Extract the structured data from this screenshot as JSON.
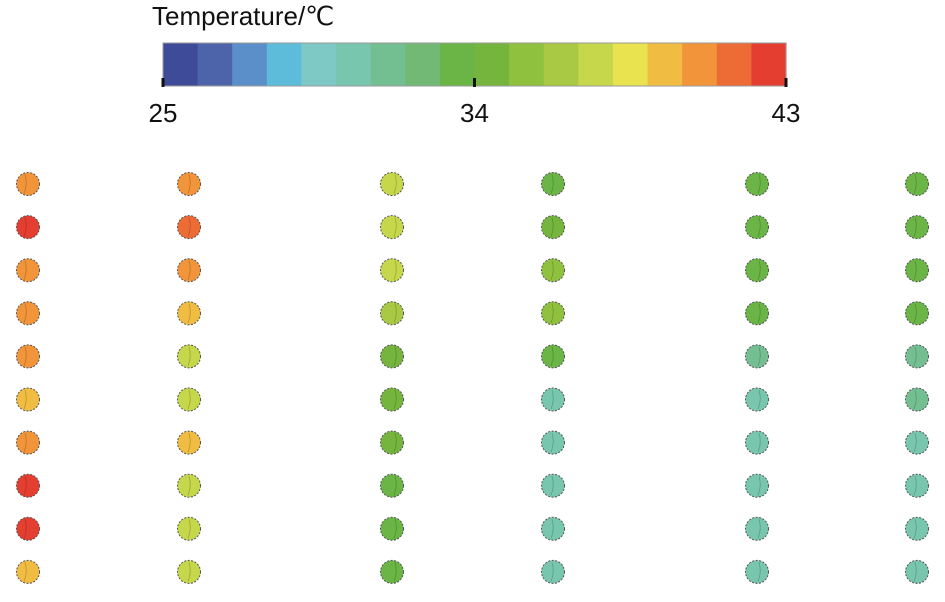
{
  "title": "Temperature/℃",
  "colorbar": {
    "min": 25,
    "max": 43,
    "tick_values": [
      25,
      34,
      43
    ],
    "tick_labels": [
      "25",
      "34",
      "43"
    ],
    "colors": [
      "#3d4b99",
      "#4d64aa",
      "#5b8fc9",
      "#5dbcd9",
      "#7ec9c6",
      "#78c6ae",
      "#74bf91",
      "#72b976",
      "#6ab545",
      "#75b53d",
      "#90c13e",
      "#a9c944",
      "#c6d74b",
      "#e9e350",
      "#f0bd42",
      "#f1943a",
      "#ed6c36",
      "#e43e31"
    ]
  },
  "sensor_grid": {
    "rows": 10,
    "columns": 6,
    "temperatures_celsius": [
      [
        40.5,
        40.0,
        37.0,
        33.5,
        33.5,
        33.5
      ],
      [
        42.0,
        41.5,
        37.0,
        34.5,
        33.5,
        33.5
      ],
      [
        40.5,
        40.5,
        37.0,
        35.0,
        33.5,
        33.5
      ],
      [
        40.5,
        39.5,
        36.0,
        35.0,
        33.5,
        33.5
      ],
      [
        40.0,
        37.5,
        34.5,
        33.5,
        31.5,
        31.5
      ],
      [
        39.5,
        37.5,
        34.0,
        30.5,
        30.5,
        31.0
      ],
      [
        40.5,
        39.0,
        34.0,
        30.5,
        30.5,
        30.5
      ],
      [
        42.0,
        37.5,
        33.5,
        30.5,
        30.5,
        30.5
      ],
      [
        42.0,
        37.5,
        33.5,
        30.0,
        30.0,
        30.5
      ],
      [
        39.5,
        37.5,
        33.5,
        30.0,
        30.0,
        30.5
      ]
    ]
  }
}
